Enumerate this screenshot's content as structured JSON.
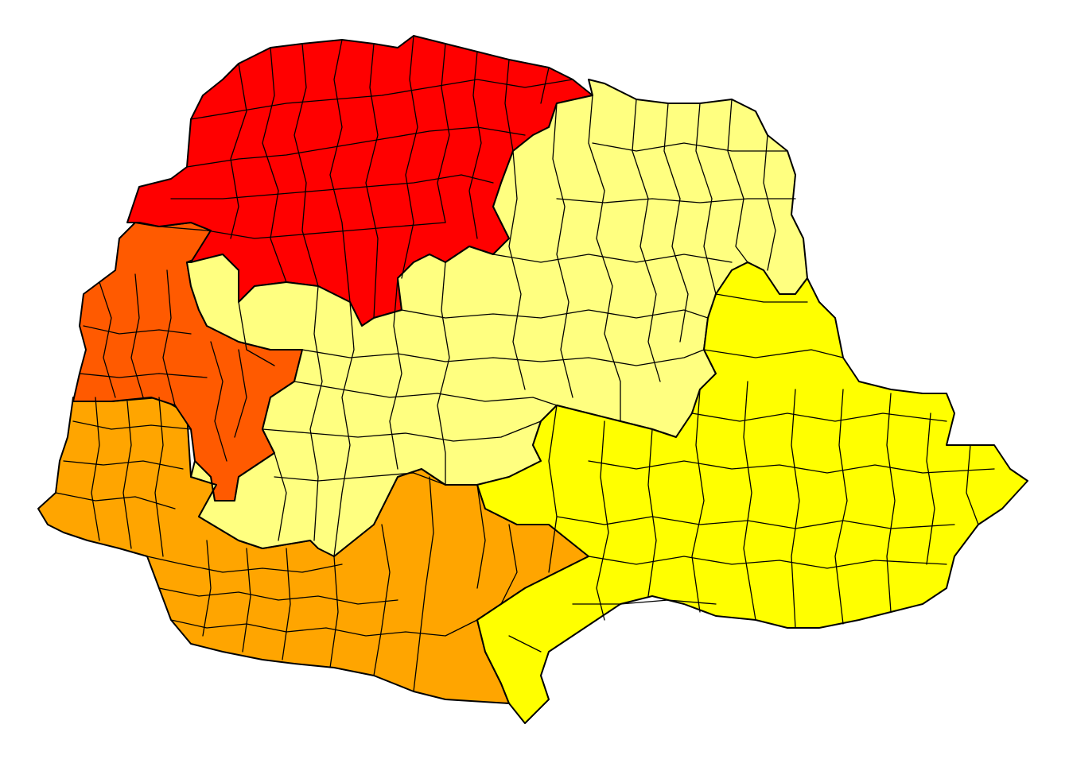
{
  "map": {
    "kind": "choropleth",
    "colors": {
      "red": "#ff0000",
      "red_orange": "#ff5a00",
      "orange": "#ffa500",
      "light_yellow": "#ffff80",
      "yellow": "#ffff00",
      "outline": "#000000",
      "background": "#ffffff"
    },
    "regions": [
      {
        "id": "north",
        "color_key": "red"
      },
      {
        "id": "west",
        "color_key": "red_orange"
      },
      {
        "id": "southwest",
        "color_key": "orange"
      },
      {
        "id": "center",
        "color_key": "light_yellow"
      },
      {
        "id": "southeast",
        "color_key": "yellow"
      }
    ]
  }
}
